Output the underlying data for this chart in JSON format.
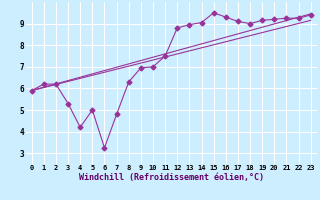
{
  "background_color": "#cceeff",
  "grid_color": "#ffffff",
  "line_color": "#993399",
  "xlabel": "Windchill (Refroidissement éolien,°C)",
  "xlabel_fontsize": 6.0,
  "ylabel_values": [
    3,
    4,
    5,
    6,
    7,
    8,
    9
  ],
  "xlim": [
    -0.5,
    23.5
  ],
  "ylim": [
    2.5,
    10.0
  ],
  "series1_x": [
    0,
    1,
    2,
    3,
    4,
    5,
    6,
    7,
    8,
    9,
    10,
    11,
    12,
    13,
    14,
    15,
    16,
    17,
    18,
    19,
    20,
    21,
    22,
    23
  ],
  "series1_y": [
    5.9,
    6.2,
    6.2,
    5.3,
    4.2,
    5.0,
    3.25,
    4.8,
    6.3,
    6.95,
    7.0,
    7.5,
    8.8,
    8.95,
    9.05,
    9.5,
    9.3,
    9.1,
    9.0,
    9.15,
    9.2,
    9.25,
    9.25,
    9.4
  ],
  "series2_x": [
    0,
    23
  ],
  "series2_y": [
    5.9,
    9.45
  ],
  "series3_x": [
    0,
    23
  ],
  "series3_y": [
    5.9,
    9.15
  ],
  "xtick_labels": [
    "0",
    "1",
    "2",
    "3",
    "4",
    "5",
    "6",
    "7",
    "8",
    "9",
    "10",
    "11",
    "12",
    "13",
    "14",
    "15",
    "16",
    "17",
    "18",
    "19",
    "20",
    "21",
    "22",
    "23"
  ],
  "tick_fontsize": 5.0,
  "ytick_fontsize": 5.5,
  "marker_size": 2.5
}
